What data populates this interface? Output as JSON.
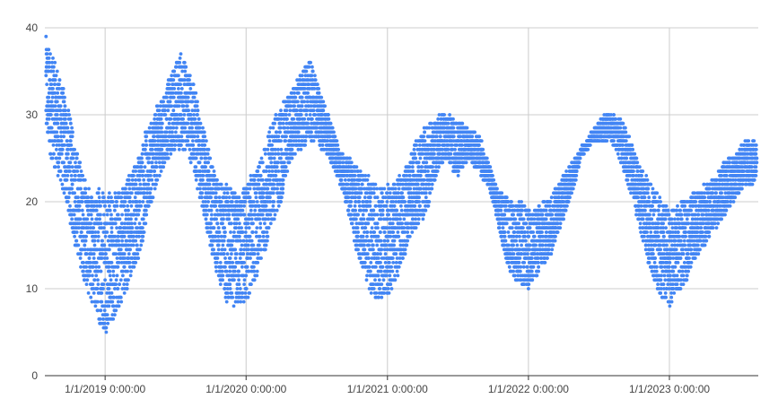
{
  "chart_data": {
    "type": "scatter",
    "title": "",
    "xlabel": "",
    "ylabel": "",
    "ylim": [
      0,
      40
    ],
    "xlim": [
      "2018-07-29",
      "2023-08-19"
    ],
    "y_ticks": [
      0,
      10,
      20,
      30,
      40
    ],
    "y_tick_labels": [
      "0",
      "10",
      "20",
      "30",
      "40"
    ],
    "x_ticks": [
      "2019-01-01",
      "2020-01-01",
      "2021-01-01",
      "2022-01-01",
      "2023-01-01"
    ],
    "x_tick_labels": [
      "1/1/2019 0:00:00",
      "1/1/2020 0:00:00",
      "1/1/2021 0:00:00",
      "1/1/2022 0:00:00",
      "1/1/2023 0:00:00"
    ],
    "grid": true,
    "legend": "none",
    "colors": {
      "points": "#4285f4",
      "grid": "#cccccc",
      "axis": "#333333",
      "text": "#444444"
    },
    "series": [
      {
        "x": [
          "2018-08-01",
          "2018-08-15",
          "2018-09-01",
          "2018-09-15",
          "2018-10-01",
          "2018-10-15",
          "2018-11-01",
          "2018-11-15",
          "2018-12-01",
          "2018-12-15",
          "2019-01-01",
          "2019-01-15",
          "2019-02-01",
          "2019-02-15",
          "2019-03-01",
          "2019-03-15",
          "2019-04-01",
          "2019-04-15",
          "2019-05-01",
          "2019-05-15",
          "2019-06-01",
          "2019-06-15",
          "2019-07-01",
          "2019-07-15",
          "2019-08-01",
          "2019-08-15",
          "2019-09-01",
          "2019-09-15",
          "2019-10-01",
          "2019-10-15",
          "2019-11-01",
          "2019-11-15",
          "2019-12-01",
          "2019-12-15",
          "2020-01-01",
          "2020-01-15",
          "2020-02-01",
          "2020-02-15",
          "2020-03-01",
          "2020-03-15",
          "2020-04-01",
          "2020-04-15",
          "2020-05-01",
          "2020-05-15",
          "2020-06-01",
          "2020-06-15",
          "2020-07-01",
          "2020-07-15",
          "2020-08-01",
          "2020-08-15",
          "2020-09-01",
          "2020-09-15",
          "2020-10-01",
          "2020-10-15",
          "2020-11-01",
          "2020-11-15",
          "2020-12-01",
          "2020-12-15",
          "2021-01-01",
          "2021-01-15",
          "2021-02-01",
          "2021-02-15",
          "2021-03-01",
          "2021-03-15",
          "2021-04-01",
          "2021-04-15",
          "2021-05-01",
          "2021-05-15",
          "2021-06-01",
          "2021-06-15",
          "2021-07-01",
          "2021-07-15",
          "2021-08-01",
          "2021-08-15",
          "2021-09-01",
          "2021-09-15",
          "2021-10-01",
          "2021-10-15",
          "2021-11-01",
          "2021-11-15",
          "2021-12-01",
          "2021-12-15",
          "2022-01-01",
          "2022-01-15",
          "2022-02-01",
          "2022-02-15",
          "2022-03-01",
          "2022-03-15",
          "2022-04-01",
          "2022-04-15",
          "2022-05-01",
          "2022-05-15",
          "2022-06-01",
          "2022-06-15",
          "2022-07-01",
          "2022-07-15",
          "2022-08-01",
          "2022-08-15",
          "2022-09-01",
          "2022-09-15",
          "2022-10-01",
          "2022-10-15",
          "2022-11-01",
          "2022-11-15",
          "2022-12-01",
          "2022-12-15",
          "2023-01-01",
          "2023-01-15",
          "2023-02-01",
          "2023-02-15",
          "2023-03-01",
          "2023-03-15",
          "2023-04-01",
          "2023-04-15",
          "2023-05-01",
          "2023-05-15",
          "2023-06-01",
          "2023-06-15",
          "2023-07-01",
          "2023-07-15",
          "2023-08-01",
          "2023-08-15"
        ],
        "ymin": [
          27,
          25,
          23,
          21,
          18,
          15,
          12,
          10,
          8,
          6,
          5,
          6,
          7,
          9,
          10,
          12,
          14,
          17,
          20,
          22,
          24,
          25,
          26,
          26,
          26,
          24,
          21,
          18,
          15,
          12,
          10,
          8,
          8,
          8,
          8,
          10,
          12,
          14,
          16,
          18,
          20,
          23,
          25,
          26,
          26,
          27,
          27,
          26,
          25,
          24,
          22,
          20,
          17,
          14,
          12,
          10,
          9,
          9,
          9,
          10,
          12,
          14,
          16,
          17,
          18,
          19,
          22,
          24,
          25,
          24,
          23,
          24,
          25,
          24,
          23,
          22,
          20,
          17,
          14,
          12,
          11,
          10,
          10,
          11,
          12,
          13,
          14,
          16,
          18,
          20,
          22,
          25,
          26,
          27,
          27,
          27,
          27,
          26,
          24,
          22,
          20,
          17,
          14,
          12,
          10,
          8,
          8,
          9,
          10,
          11,
          13,
          14,
          15,
          16,
          17,
          18,
          19,
          20,
          21,
          22,
          22,
          23
        ],
        "ymax": [
          39,
          37,
          35,
          33,
          30,
          27,
          24,
          22,
          20,
          22,
          22,
          21,
          21,
          22,
          23,
          24,
          26,
          28,
          29,
          31,
          32,
          34,
          36,
          37,
          36,
          34,
          31,
          28,
          25,
          23,
          22,
          22,
          21,
          21,
          22,
          23,
          24,
          26,
          28,
          30,
          31,
          32,
          33,
          34,
          36,
          36,
          34,
          32,
          30,
          28,
          26,
          25,
          25,
          24,
          23,
          23,
          22,
          22,
          22,
          22,
          23,
          24,
          25,
          27,
          28,
          29,
          29,
          30,
          30,
          30,
          29,
          29,
          28,
          28,
          27,
          25,
          23,
          21,
          21,
          20,
          20,
          20,
          19,
          19,
          20,
          20,
          21,
          22,
          23,
          24,
          25,
          26,
          27,
          28,
          29,
          30,
          30,
          30,
          29,
          28,
          26,
          24,
          23,
          22,
          21,
          20,
          19,
          19,
          20,
          20,
          21,
          21,
          22,
          22,
          23,
          24,
          25,
          25,
          26,
          27,
          27,
          27
        ]
      }
    ]
  }
}
